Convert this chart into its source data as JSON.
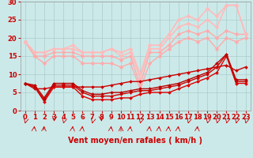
{
  "title": "",
  "xlabel": "Vent moyen/en rafales ( km/h )",
  "xlim": [
    -0.5,
    23.5
  ],
  "ylim": [
    0,
    30
  ],
  "xticks": [
    0,
    1,
    2,
    3,
    4,
    5,
    6,
    7,
    8,
    9,
    10,
    11,
    12,
    13,
    14,
    15,
    16,
    17,
    18,
    19,
    20,
    21,
    22,
    23
  ],
  "yticks": [
    0,
    5,
    10,
    15,
    20,
    25,
    30
  ],
  "bg_color": "#cce9e9",
  "grid_color": "#aacccc",
  "lines": [
    {
      "x": [
        0,
        1,
        2,
        3,
        4,
        5,
        6,
        7,
        8,
        9,
        10,
        11,
        12,
        13,
        14,
        15,
        16,
        17,
        18,
        19,
        20,
        21,
        22,
        23
      ],
      "y": [
        19,
        15,
        13,
        15,
        15,
        15,
        13,
        13,
        13,
        13,
        12,
        13,
        6,
        13,
        15,
        17,
        19,
        20,
        19,
        20,
        17,
        20,
        19,
        20
      ],
      "color": "#ffaaaa",
      "lw": 1.0,
      "marker": "D",
      "ms": 2.5
    },
    {
      "x": [
        0,
        1,
        2,
        3,
        4,
        5,
        6,
        7,
        8,
        9,
        10,
        11,
        12,
        13,
        14,
        15,
        16,
        17,
        18,
        19,
        20,
        21,
        22,
        23
      ],
      "y": [
        19,
        15,
        15,
        16,
        16,
        16,
        15,
        15,
        15,
        15,
        14,
        15,
        7,
        16,
        16,
        18,
        21,
        22,
        21,
        22,
        20,
        22,
        21,
        21
      ],
      "color": "#ffaaaa",
      "lw": 1.0,
      "marker": "D",
      "ms": 2.5
    },
    {
      "x": [
        0,
        1,
        2,
        3,
        4,
        5,
        6,
        7,
        8,
        9,
        10,
        11,
        12,
        13,
        14,
        15,
        16,
        17,
        18,
        19,
        20,
        21,
        22,
        23
      ],
      "y": [
        19,
        16,
        16,
        17,
        17,
        17,
        16,
        16,
        16,
        17,
        15,
        16,
        9,
        17,
        17,
        20,
        23,
        24,
        23,
        25,
        23,
        29,
        29,
        21
      ],
      "color": "#ffbbbb",
      "lw": 1.2,
      "marker": "D",
      "ms": 2.5
    },
    {
      "x": [
        0,
        1,
        2,
        3,
        4,
        5,
        6,
        7,
        8,
        9,
        10,
        11,
        12,
        13,
        14,
        15,
        16,
        17,
        18,
        19,
        20,
        21,
        22,
        23
      ],
      "y": [
        19,
        16,
        16,
        17,
        17,
        18,
        16,
        16,
        16,
        17,
        16,
        17,
        10,
        18,
        18,
        21,
        25,
        26,
        25,
        28,
        26,
        29,
        29,
        21
      ],
      "color": "#ffbbbb",
      "lw": 1.2,
      "marker": "D",
      "ms": 2.5
    },
    {
      "x": [
        0,
        1,
        2,
        3,
        4,
        5,
        6,
        7,
        8,
        9,
        10,
        11,
        12,
        13,
        14,
        15,
        16,
        17,
        18,
        19,
        20,
        21,
        22,
        23
      ],
      "y": [
        7.5,
        6,
        6,
        6.5,
        6.5,
        6.5,
        6.5,
        6.5,
        6.5,
        7,
        7.5,
        8,
        8,
        8.5,
        9,
        9.5,
        10,
        10.5,
        11,
        11.5,
        12,
        12.5,
        11,
        12
      ],
      "color": "#cc0000",
      "lw": 1.0,
      "marker": "D",
      "ms": 2.0
    },
    {
      "x": [
        0,
        1,
        2,
        3,
        4,
        5,
        6,
        7,
        8,
        9,
        10,
        11,
        12,
        13,
        14,
        15,
        16,
        17,
        18,
        19,
        20,
        21,
        22,
        23
      ],
      "y": [
        7.5,
        6.5,
        2.5,
        6.5,
        6.5,
        6.5,
        4,
        3,
        3,
        3,
        3.5,
        3.5,
        4.5,
        5,
        5,
        5,
        6,
        7,
        8,
        9,
        10.5,
        15,
        7.5,
        7.5
      ],
      "color": "#dd0000",
      "lw": 1.0,
      "marker": "D",
      "ms": 2.0
    },
    {
      "x": [
        0,
        1,
        2,
        3,
        4,
        5,
        6,
        7,
        8,
        9,
        10,
        11,
        12,
        13,
        14,
        15,
        16,
        17,
        18,
        19,
        20,
        21,
        22,
        23
      ],
      "y": [
        7.5,
        6.5,
        3,
        7,
        7,
        7,
        5,
        4,
        4,
        4,
        4.5,
        5,
        5.5,
        5.5,
        6,
        6.5,
        7,
        8,
        9,
        10,
        12,
        15.5,
        8,
        8
      ],
      "color": "#cc0000",
      "lw": 1.0,
      "marker": "D",
      "ms": 2.0
    },
    {
      "x": [
        0,
        1,
        2,
        3,
        4,
        5,
        6,
        7,
        8,
        9,
        10,
        11,
        12,
        13,
        14,
        15,
        16,
        17,
        18,
        19,
        20,
        21,
        22,
        23
      ],
      "y": [
        7.5,
        7,
        3.5,
        7.5,
        7.5,
        7.5,
        5.5,
        4.5,
        4.5,
        5,
        5,
        5.5,
        6,
        6,
        6.5,
        7,
        7.5,
        8.5,
        9.5,
        10.5,
        13,
        15.5,
        8.5,
        8.5
      ],
      "color": "#bb0000",
      "lw": 1.0,
      "marker": "D",
      "ms": 2.0
    }
  ],
  "xlabel_color": "#cc0000",
  "xlabel_fontsize": 7,
  "tick_color": "#cc0000",
  "tick_fontsize": 6,
  "arrow_angles": [
    200,
    45,
    60,
    220,
    200,
    45,
    45,
    200,
    315,
    45,
    90,
    45,
    200,
    45,
    45,
    45,
    45,
    200,
    45,
    200,
    200,
    200,
    200,
    200
  ]
}
